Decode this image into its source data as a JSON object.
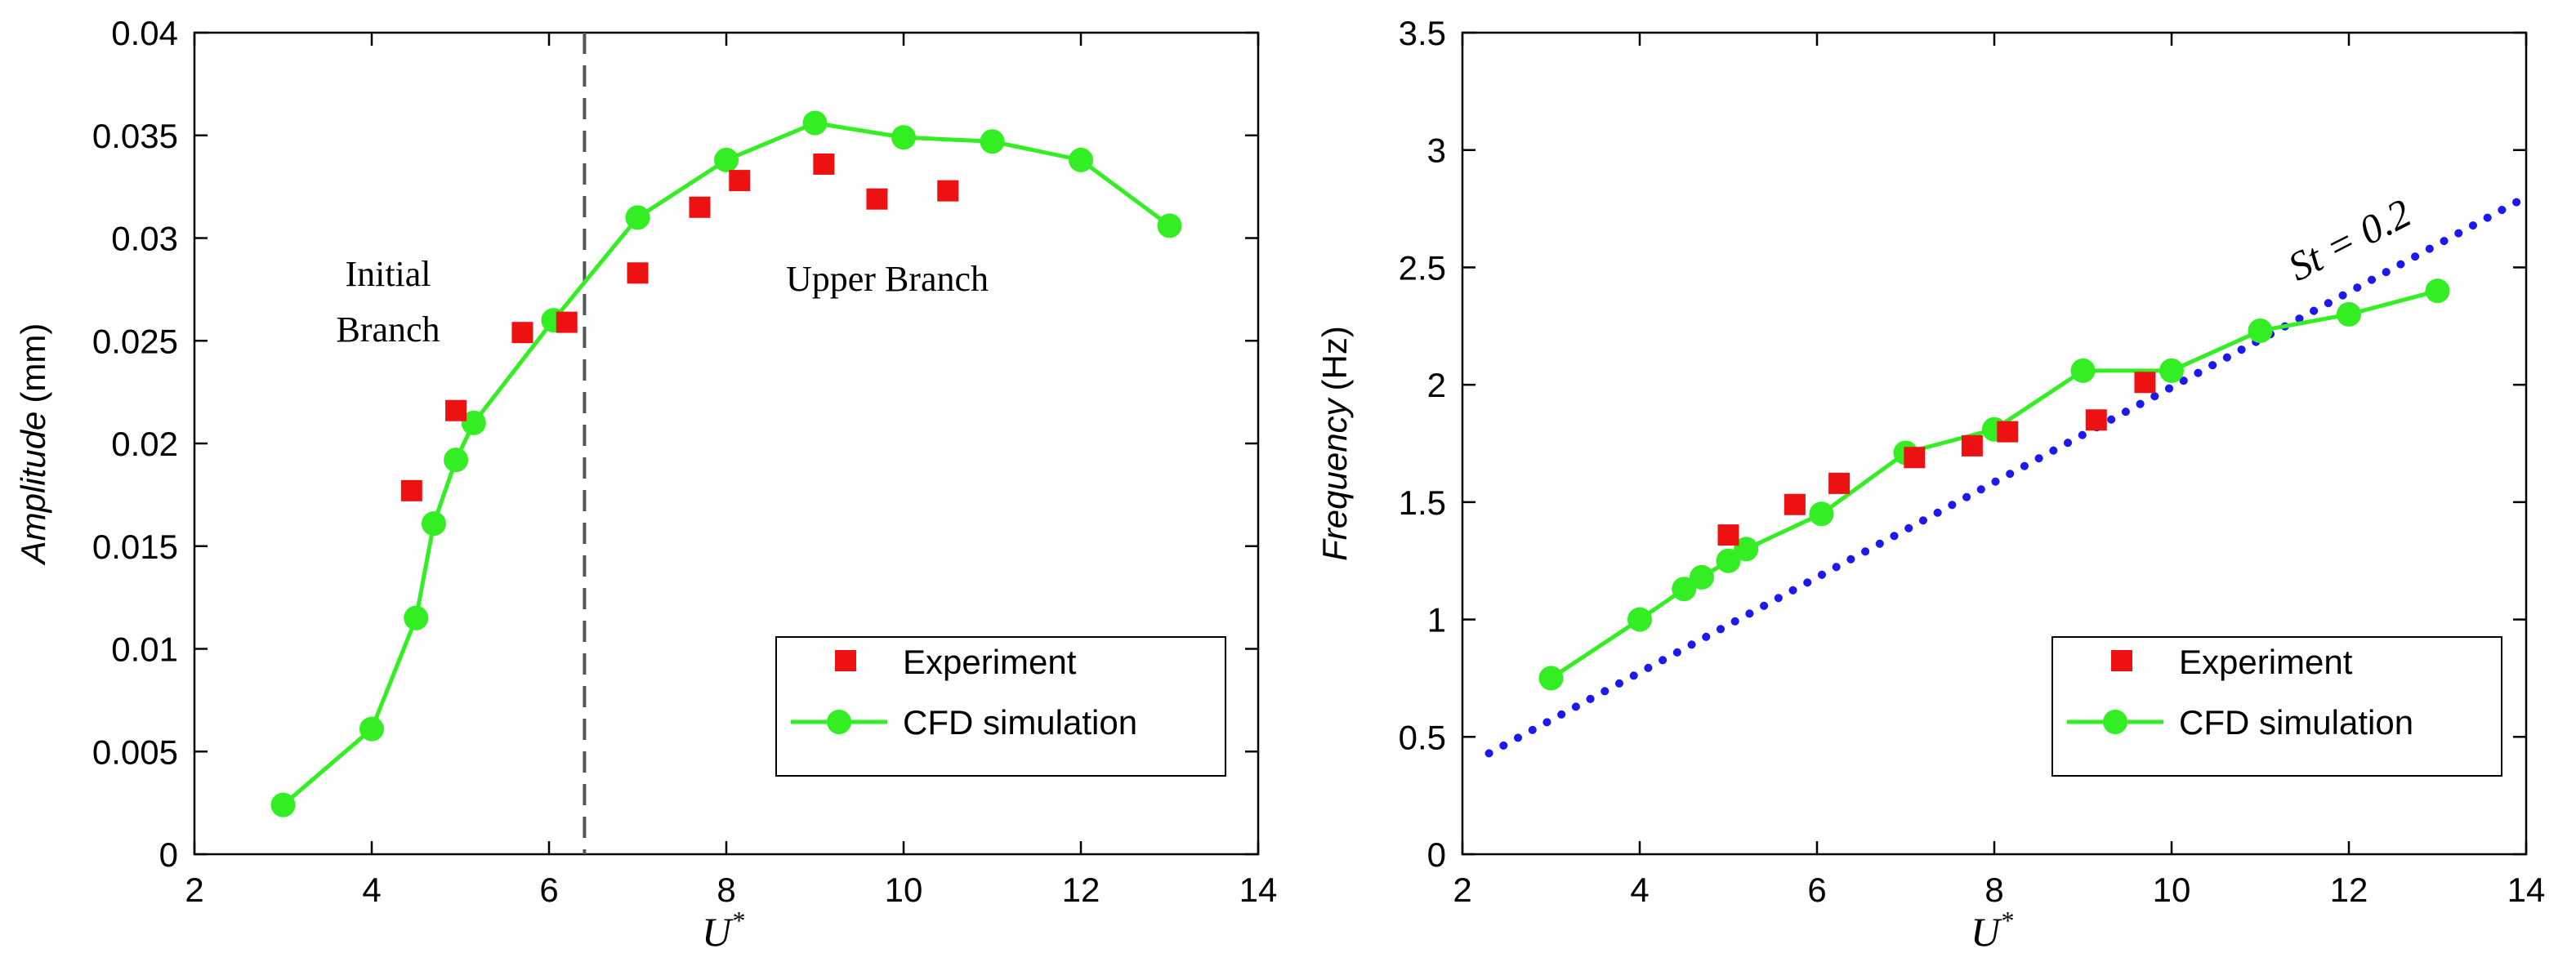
{
  "colors": {
    "experiment": "#ee1111",
    "cfd": "#33ee22",
    "st_line": "#1a1aee",
    "divider": "#555555",
    "axis": "#000000"
  },
  "chart_data": [
    {
      "type": "line",
      "xlabel": "U",
      "xlabel_sup": "*",
      "ylabel_italic": "Amplitude",
      "ylabel_unit": "(mm)",
      "xlim": [
        2,
        14
      ],
      "ylim": [
        0,
        0.04
      ],
      "xticks": [
        2,
        4,
        6,
        8,
        10,
        12,
        14
      ],
      "xtick_labels": [
        "2",
        "4",
        "6",
        "8",
        "10",
        "12",
        "14"
      ],
      "yticks": [
        0,
        0.005,
        0.01,
        0.015,
        0.02,
        0.025,
        0.03,
        0.035,
        0.04
      ],
      "ytick_labels": [
        "0",
        "0.005",
        "0.01",
        "0.015",
        "0.02",
        "0.025",
        "0.03",
        "0.035",
        "0.04"
      ],
      "series": [
        {
          "name": "Experiment",
          "style": "markers-square",
          "x": [
            4.45,
            4.95,
            5.7,
            6.2,
            7.0,
            7.7,
            8.15,
            9.1,
            9.7,
            10.5
          ],
          "y": [
            0.0177,
            0.0216,
            0.0254,
            0.0259,
            0.0283,
            0.0315,
            0.0328,
            0.0336,
            0.0319,
            0.0323
          ]
        },
        {
          "name": "CFD simulation",
          "style": "line-circles",
          "x": [
            3.0,
            4.0,
            4.5,
            4.7,
            4.95,
            5.15,
            6.05,
            7.0,
            8.0,
            9.0,
            10.0,
            11.0,
            12.0,
            13.0
          ],
          "y": [
            0.0024,
            0.0061,
            0.0115,
            0.0161,
            0.0192,
            0.021,
            0.026,
            0.031,
            0.0338,
            0.0356,
            0.0349,
            0.0347,
            0.0338,
            0.0306
          ]
        }
      ],
      "divider_x": 6.4,
      "annotations": [
        {
          "lines": [
            "Initial",
            "Branch"
          ]
        },
        {
          "lines": [
            "Upper Branch"
          ]
        }
      ],
      "legend": {
        "position": "bottom-right",
        "entries": [
          "Experiment",
          "CFD simulation"
        ]
      }
    },
    {
      "type": "line",
      "xlabel": "U",
      "xlabel_sup": "*",
      "ylabel_italic": "Frequency",
      "ylabel_unit": "(Hz)",
      "xlim": [
        2,
        14
      ],
      "ylim": [
        0,
        3.5
      ],
      "xticks": [
        2,
        4,
        6,
        8,
        10,
        12,
        14
      ],
      "xtick_labels": [
        "2",
        "4",
        "6",
        "8",
        "10",
        "12",
        "14"
      ],
      "yticks": [
        0,
        0.5,
        1,
        1.5,
        2,
        2.5,
        3,
        3.5
      ],
      "ytick_labels": [
        "0",
        "0.5",
        "1",
        "1.5",
        "2",
        "2.5",
        "3",
        "3.5"
      ],
      "series": [
        {
          "name": "Experiment",
          "style": "markers-square",
          "x": [
            5.0,
            5.75,
            6.25,
            7.1,
            7.75,
            8.15,
            9.15,
            9.7
          ],
          "y": [
            1.36,
            1.49,
            1.58,
            1.69,
            1.74,
            1.8,
            1.85,
            2.01
          ]
        },
        {
          "name": "CFD simulation",
          "style": "line-circles",
          "x": [
            3.0,
            4.0,
            4.5,
            4.7,
            5.0,
            5.2,
            6.05,
            7.0,
            8.0,
            9.0,
            10.0,
            11.0,
            12.0,
            13.0
          ],
          "y": [
            0.75,
            1.0,
            1.13,
            1.18,
            1.25,
            1.3,
            1.45,
            1.71,
            1.81,
            2.06,
            2.06,
            2.23,
            2.3,
            2.4
          ]
        },
        {
          "name": "St = 0.2",
          "style": "dotted-line",
          "x": [
            2.3,
            14.0
          ],
          "y": [
            0.43,
            2.8
          ]
        }
      ],
      "annotations": [
        {
          "text": "St = 0.2"
        }
      ],
      "legend": {
        "position": "bottom-right",
        "entries": [
          "Experiment",
          "CFD simulation"
        ]
      }
    }
  ]
}
